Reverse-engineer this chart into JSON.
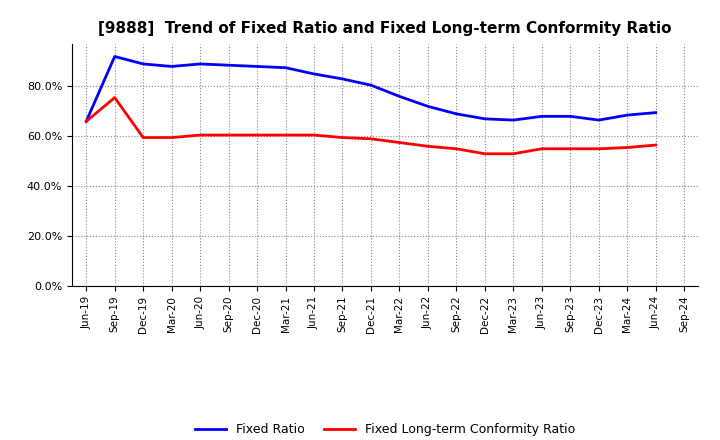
{
  "title": "[9888]  Trend of Fixed Ratio and Fixed Long-term Conformity Ratio",
  "x_labels": [
    "Jun-19",
    "Sep-19",
    "Dec-19",
    "Mar-20",
    "Jun-20",
    "Sep-20",
    "Dec-20",
    "Mar-21",
    "Jun-21",
    "Sep-21",
    "Dec-21",
    "Mar-22",
    "Jun-22",
    "Sep-22",
    "Dec-22",
    "Mar-23",
    "Jun-23",
    "Sep-23",
    "Dec-23",
    "Mar-24",
    "Jun-24",
    "Sep-24"
  ],
  "fixed_ratio": [
    66.0,
    92.0,
    89.0,
    88.0,
    89.0,
    88.5,
    88.0,
    87.5,
    85.0,
    83.0,
    80.5,
    76.0,
    72.0,
    69.0,
    67.0,
    66.5,
    68.0,
    68.0,
    66.5,
    68.5,
    69.5,
    null
  ],
  "fixed_lt_ratio": [
    66.0,
    75.5,
    59.5,
    59.5,
    60.5,
    60.5,
    60.5,
    60.5,
    60.5,
    59.5,
    59.0,
    57.5,
    56.0,
    55.0,
    53.0,
    53.0,
    55.0,
    55.0,
    55.0,
    55.5,
    56.5,
    null
  ],
  "fixed_ratio_color": "#0000FF",
  "fixed_lt_ratio_color": "#FF0000",
  "ylim": [
    0,
    97
  ],
  "yticks": [
    0,
    20,
    40,
    60,
    80
  ],
  "background_color": "#FFFFFF",
  "plot_bg_color": "#FFFFFF",
  "grid_color": "#888888",
  "legend_labels": [
    "Fixed Ratio",
    "Fixed Long-term Conformity Ratio"
  ]
}
